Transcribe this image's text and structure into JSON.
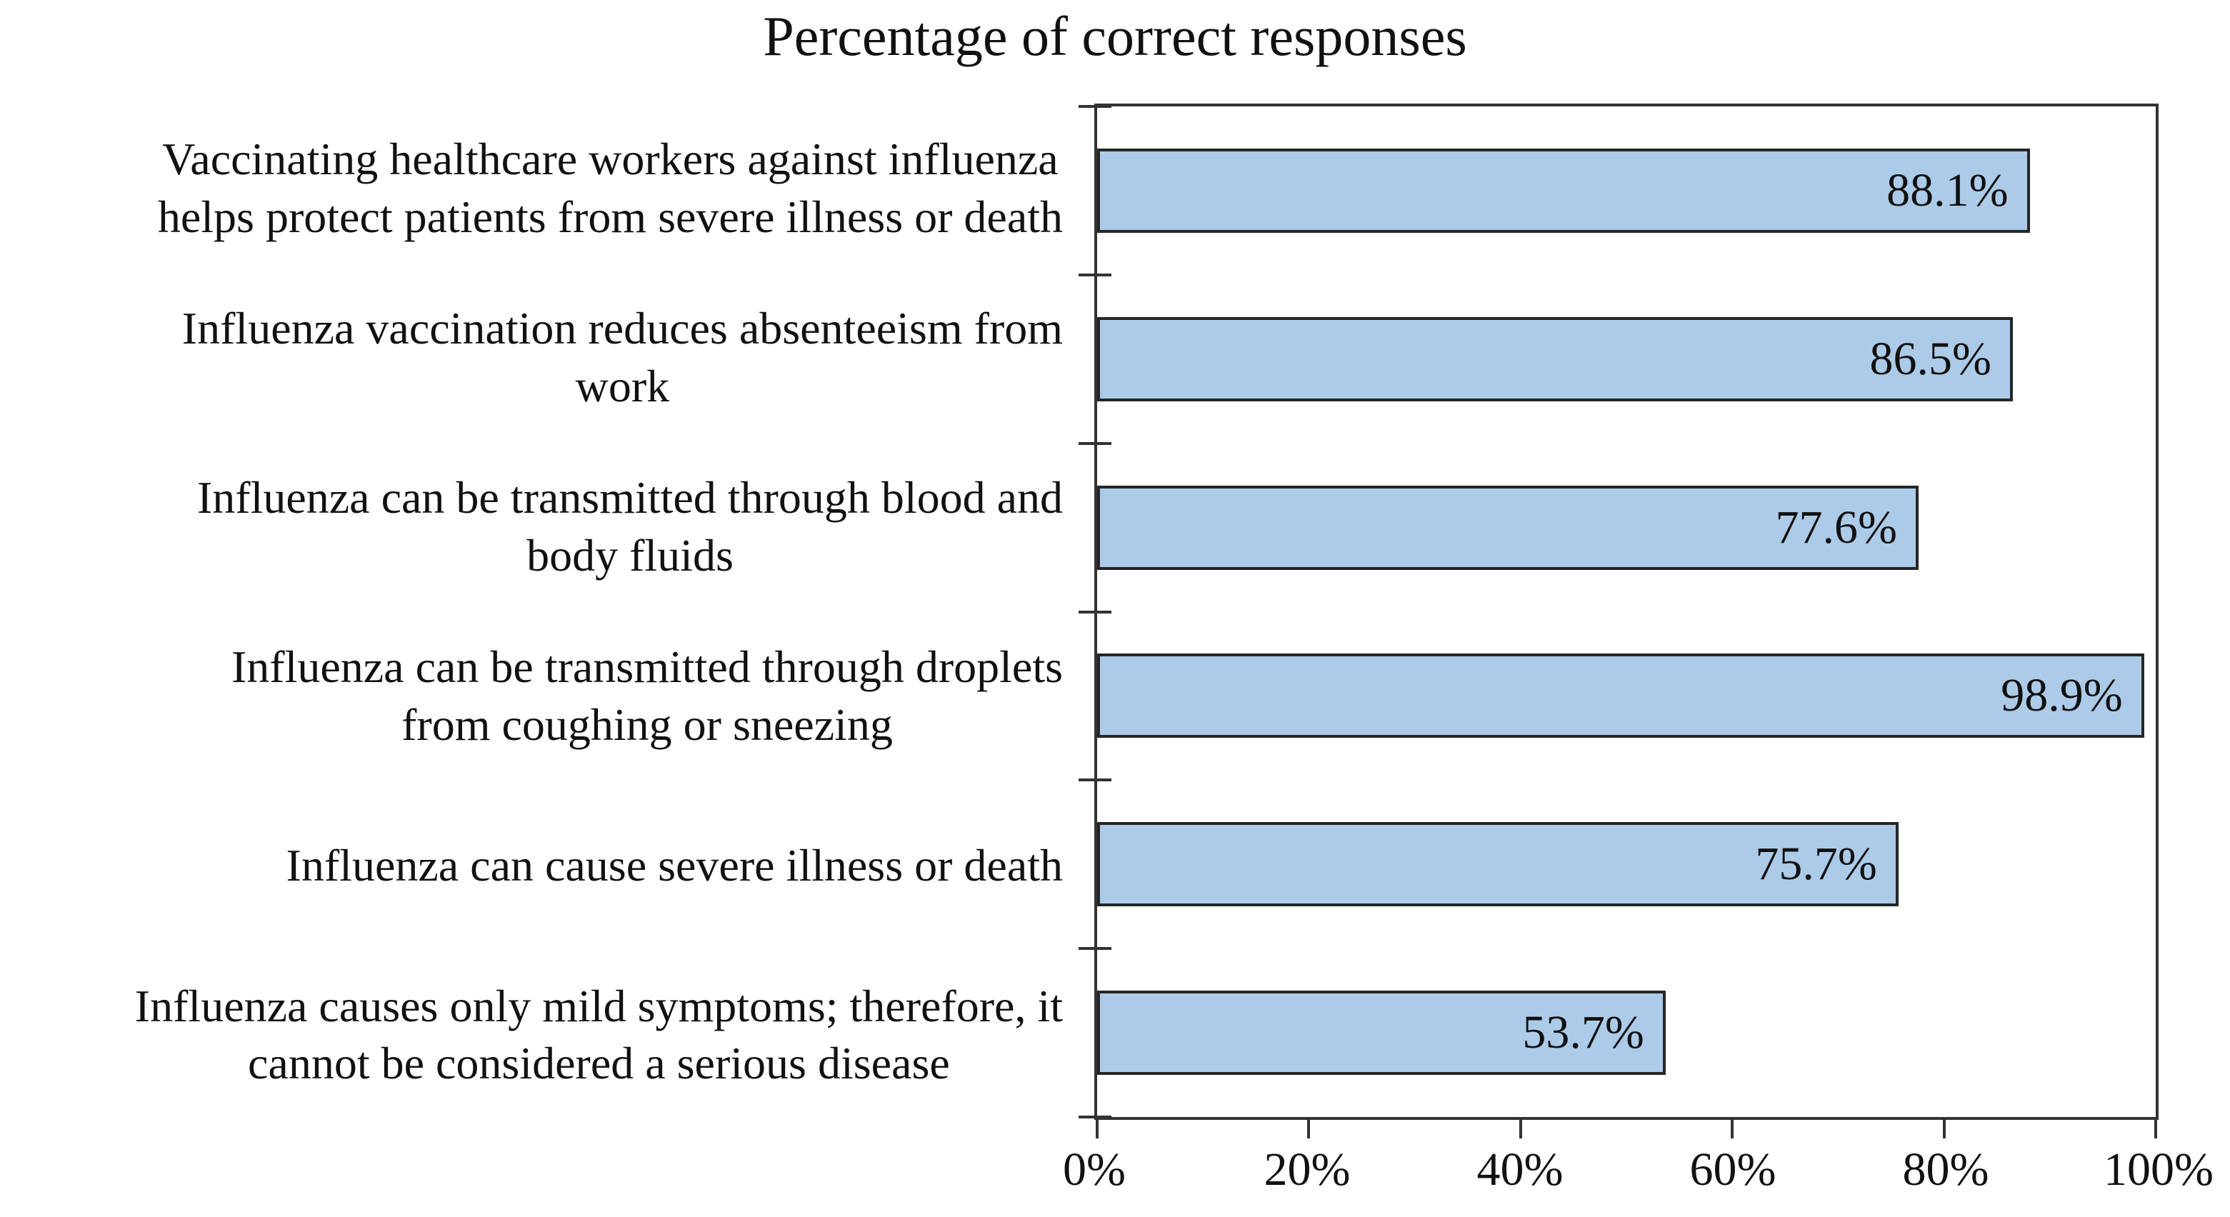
{
  "chart_data": {
    "type": "bar",
    "orientation": "horizontal",
    "title": "Percentage of correct responses",
    "categories": [
      {
        "lines": [
          "Vaccinating healthcare workers against influenza",
          "helps protect patients from severe illness or death"
        ],
        "label": "Vaccinating healthcare workers against influenza helps protect patients from severe illness or death",
        "value": 88.1,
        "value_label": "88.1%"
      },
      {
        "lines": [
          "Influenza vaccination reduces absenteeism from",
          "work"
        ],
        "label": "Influenza vaccination reduces absenteeism from work",
        "value": 86.5,
        "value_label": "86.5%"
      },
      {
        "lines": [
          "Influenza can be transmitted through blood and",
          "body fluids"
        ],
        "label": "Influenza can be transmitted through blood and body fluids",
        "value": 77.6,
        "value_label": "77.6%"
      },
      {
        "lines": [
          "Influenza can be transmitted through droplets",
          "from coughing or sneezing"
        ],
        "label": "Influenza can be transmitted through droplets from coughing or sneezing",
        "value": 98.9,
        "value_label": "98.9%"
      },
      {
        "lines": [
          "Influenza can cause severe illness or death"
        ],
        "label": "Influenza can cause severe illness or death",
        "value": 75.7,
        "value_label": "75.7%"
      },
      {
        "lines": [
          "Influenza causes only mild symptoms; therefore, it",
          "cannot be considered a serious disease"
        ],
        "label": "Influenza causes only mild symptoms; therefore, it cannot be considered a serious disease",
        "value": 53.7,
        "value_label": "53.7%"
      }
    ],
    "x_axis": {
      "min": 0,
      "max": 100,
      "tick_labels": [
        "0%",
        "20%",
        "40%",
        "60%",
        "80%",
        "100%"
      ]
    },
    "grid": false,
    "legend": false,
    "colors": {
      "bar_fill": "#accbe8",
      "bar_border": "#262626",
      "axis": "#333333",
      "text": "#111111"
    }
  }
}
